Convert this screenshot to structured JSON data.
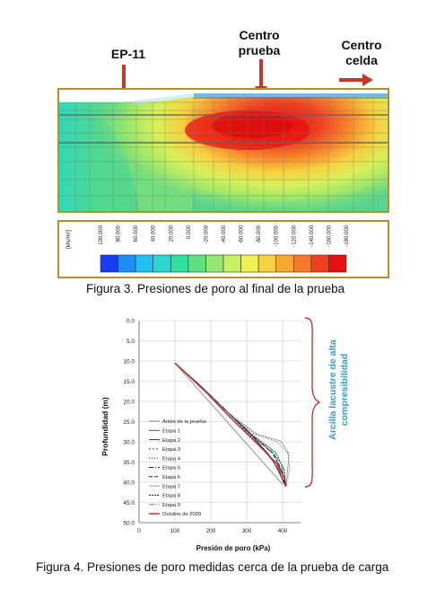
{
  "figure3": {
    "labels": {
      "ep11": "EP-11",
      "centro_prueba": [
        "Centro",
        "prueba"
      ],
      "centro_celda": [
        "Centro",
        "celda"
      ]
    },
    "legend": {
      "unit": "[kN/m²]",
      "ticks": [
        "100.000",
        "80.000",
        "60.000",
        "40.000",
        "20.000",
        "0.000",
        "-20.000",
        "-40.000",
        "-60.000",
        "-80.000",
        "-100.000",
        "-120.000",
        "-140.000",
        "-160.000",
        "-180.000"
      ],
      "colors": [
        "#1a3cf0",
        "#1e8ef5",
        "#22c0f0",
        "#28d8d0",
        "#30e0a0",
        "#5ee080",
        "#92e870",
        "#c8f060",
        "#f0f050",
        "#f8d040",
        "#f8a830",
        "#f87828",
        "#f04020",
        "#e81010"
      ]
    },
    "caption": "Figura 3. Presiones de poro al final de la prueba"
  },
  "figure4": {
    "caption": "Figura 4. Presiones de poro medidas cerca de la prueba de carga",
    "annotation": [
      "Arcilla lacustre de alta",
      "compresibilidad"
    ],
    "annotation_color": "#2e9bd6",
    "brace_color": "#c0392b",
    "chart_data": {
      "type": "line",
      "xlabel": "Presión de poro (kPa)",
      "ylabel": "Profundidad (m)",
      "xlim": [
        0,
        450
      ],
      "ylim": [
        0,
        50
      ],
      "y_inverted": true,
      "x_ticks": [
        "0",
        "100",
        "200",
        "300",
        "400"
      ],
      "y_ticks": [
        "0.0",
        "5.0",
        "10.0",
        "15.0",
        "20.0",
        "25.0",
        "30.0",
        "35.0",
        "40.0",
        "45.0",
        "50.0"
      ],
      "grid": true,
      "legend_position": "lower-left",
      "series": [
        {
          "name": "Antes de la prueba",
          "color": "#8a8a8a",
          "dash": "",
          "x": [
            100,
            200,
            300,
            400
          ],
          "y": [
            10.5,
            20.5,
            30.5,
            40.5
          ]
        },
        {
          "name": "Etapa 1",
          "color": "#555555",
          "dash": "",
          "x": [
            100,
            180,
            250,
            320,
            375,
            395,
            405
          ],
          "y": [
            10.5,
            17,
            23,
            29,
            35,
            38.5,
            40.5
          ]
        },
        {
          "name": "Etapa 2",
          "color": "#333333",
          "dash": "",
          "x": [
            100,
            170,
            240,
            310,
            360,
            390,
            405
          ],
          "y": [
            10.5,
            16,
            22,
            28,
            33,
            37,
            40.5
          ]
        },
        {
          "name": "Etapa 3",
          "color": "#444444",
          "dash": "2,2",
          "x": [
            100,
            175,
            245,
            310,
            365,
            392,
            405
          ],
          "y": [
            10.5,
            16.5,
            22.5,
            28.5,
            33.5,
            37.5,
            40.5
          ]
        },
        {
          "name": "Etapa 4",
          "color": "#333333",
          "dash": "1,2",
          "x": [
            100,
            175,
            245,
            320,
            385,
            415,
            420,
            408
          ],
          "y": [
            10.5,
            16.5,
            22.5,
            28,
            30,
            33,
            37,
            41
          ]
        },
        {
          "name": "Etapa 5",
          "color": "#222222",
          "dash": "5,2,1,2",
          "x": [
            100,
            175,
            245,
            315,
            375,
            400,
            408
          ],
          "y": [
            10.5,
            16.5,
            22.5,
            28.5,
            33,
            37.5,
            41
          ]
        },
        {
          "name": "Etapa 6",
          "color": "#222222",
          "dash": "4,2",
          "x": [
            100,
            172,
            242,
            312,
            372,
            398,
            407
          ],
          "y": [
            10.5,
            16.3,
            22.3,
            28.2,
            32.8,
            37.2,
            41
          ]
        },
        {
          "name": "Etapa 7",
          "color": "#999999",
          "dash": "",
          "x": [
            100,
            180,
            250,
            330,
            395,
            418,
            410
          ],
          "y": [
            10.5,
            17,
            23,
            28.2,
            29.8,
            33,
            41
          ]
        },
        {
          "name": "Etapa 8",
          "color": "#111111",
          "dash": "2,1",
          "x": [
            100,
            172,
            244,
            318,
            380,
            404,
            410
          ],
          "y": [
            10.5,
            16.4,
            22.4,
            28.4,
            32.6,
            36.8,
            41
          ]
        },
        {
          "name": "Etapa 9",
          "color": "#20b0a0",
          "dash": "6,2,1,2",
          "x": [
            100,
            174,
            246,
            318,
            378,
            402,
            410
          ],
          "y": [
            10.5,
            16.5,
            22.5,
            28.5,
            33,
            37,
            41
          ]
        },
        {
          "name": "Octubre de 2009",
          "color": "#d42020",
          "dash": "",
          "x": [
            100,
            190,
            260,
            330,
            385,
            405,
            410
          ],
          "y": [
            10.5,
            18,
            24.5,
            30.5,
            35.5,
            39,
            41
          ]
        }
      ]
    }
  }
}
